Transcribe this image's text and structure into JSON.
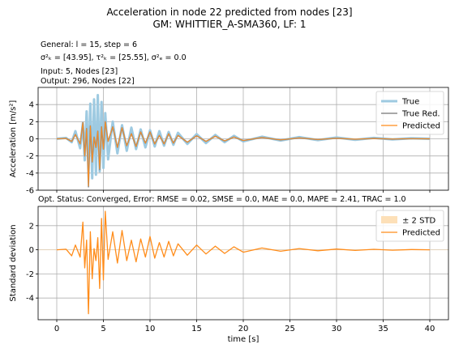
{
  "header": {
    "title_line1": "Acceleration in node 22 predicted from nodes [23]",
    "title_line2": "GM: WHITTIER_A-SMA360, LF: 1",
    "info_line1": "General: l = 15, step = 6",
    "info_line2": "σ²ₖ = [43.95], τ²ₖ = [25.55], σ²ₑ = 0.0",
    "info_line3": "Input: 5, Nodes [23]",
    "info_line4": "Output: 296, Nodes [22]",
    "opt_status": "Opt. Status: Converged, Error: RMSE = 0.02, SMSE = 0.0, MAE = 0.0, MAPE = 2.41, TRAC = 1.0"
  },
  "colors": {
    "true": "#9ecae1",
    "true_red": "#8c8c8c",
    "predicted": "#ff8c1a",
    "std_band": "#fde0b8",
    "grid": "#b0b0b0"
  },
  "chart_data": [
    {
      "type": "line",
      "ylabel": "Acceleration [m/s²]",
      "xlim": [
        -2,
        42
      ],
      "ylim": [
        -6,
        6
      ],
      "xticks": [
        0,
        5,
        10,
        15,
        20,
        25,
        30,
        35,
        40
      ],
      "yticks": [
        -6,
        -4,
        -2,
        0,
        2,
        4
      ],
      "grid": true,
      "legend_position": "top-right",
      "legend": [
        "True",
        "True Red.",
        "Predicted"
      ],
      "series": [
        {
          "name": "True",
          "x": [
            0,
            1,
            1.6,
            2,
            2.5,
            2.8,
            3,
            3.2,
            3.4,
            3.6,
            3.8,
            4,
            4.2,
            4.4,
            4.6,
            4.8,
            5,
            5.2,
            5.5,
            6,
            6.5,
            7,
            7.5,
            8,
            8.5,
            9,
            9.5,
            10,
            10.5,
            11,
            11.5,
            12,
            12.5,
            13,
            14,
            15,
            16,
            17,
            18,
            19,
            20,
            22,
            24,
            26,
            28,
            30,
            32,
            34,
            36,
            38,
            40
          ],
          "y": [
            0,
            0.1,
            -0.4,
            0.9,
            -1.1,
            1.8,
            -2.5,
            3.2,
            -3.0,
            4.1,
            -4.6,
            4.6,
            -4.2,
            5.1,
            -3.8,
            4.3,
            -3.4,
            3.0,
            -2.4,
            2.0,
            -1.7,
            1.6,
            -1.4,
            1.3,
            -1.2,
            1.1,
            -1.0,
            1.0,
            -0.9,
            0.9,
            -0.8,
            0.8,
            -0.7,
            0.7,
            -0.6,
            0.55,
            -0.5,
            0.45,
            -0.4,
            0.35,
            -0.3,
            0.25,
            -0.2,
            0.2,
            -0.15,
            0.15,
            -0.12,
            0.1,
            -0.08,
            0.06,
            0
          ]
        },
        {
          "name": "True Red.",
          "x": [
            0,
            1,
            1.6,
            2,
            2.5,
            2.8,
            3,
            3.2,
            3.4,
            3.6,
            3.8,
            4,
            4.2,
            4.4,
            4.6,
            4.8,
            5,
            5.2,
            5.5,
            6,
            6.5,
            7,
            7.5,
            8,
            8.5,
            9,
            9.5,
            10,
            10.5,
            11,
            11.5,
            12,
            12.5,
            13,
            14,
            15,
            16,
            17,
            18,
            19,
            20,
            22,
            24,
            26,
            28,
            30,
            32,
            34,
            36,
            38,
            40
          ],
          "y": [
            0,
            0.05,
            -0.3,
            0.5,
            -0.6,
            1.9,
            -2.0,
            1.2,
            -5.6,
            1.5,
            -2.7,
            0.2,
            -1.0,
            0.9,
            -3.6,
            1.4,
            -1.2,
            2.0,
            -0.3,
            1.4,
            -1.0,
            1.3,
            -0.8,
            0.6,
            -0.9,
            0.8,
            -0.5,
            0.8,
            -0.6,
            0.4,
            -0.6,
            0.6,
            -0.5,
            0.4,
            -0.4,
            0.35,
            -0.3,
            0.3,
            -0.25,
            0.2,
            -0.2,
            0.15,
            -0.12,
            0.1,
            -0.08,
            0.07,
            -0.05,
            0.04,
            -0.03,
            0.02,
            0
          ]
        },
        {
          "name": "Predicted",
          "x": [
            0,
            1,
            1.6,
            2,
            2.5,
            2.8,
            3,
            3.2,
            3.4,
            3.6,
            3.8,
            4,
            4.2,
            4.4,
            4.6,
            4.8,
            5,
            5.2,
            5.5,
            6,
            6.5,
            7,
            7.5,
            8,
            8.5,
            9,
            9.5,
            10,
            10.5,
            11,
            11.5,
            12,
            12.5,
            13,
            14,
            15,
            16,
            17,
            18,
            19,
            20,
            22,
            24,
            26,
            28,
            30,
            32,
            34,
            36,
            38,
            40
          ],
          "y": [
            0,
            0.05,
            -0.3,
            0.5,
            -0.6,
            1.9,
            -2.0,
            1.2,
            -5.5,
            1.5,
            -2.7,
            0.2,
            -1.0,
            0.9,
            -3.5,
            1.4,
            -1.2,
            2.0,
            -0.3,
            1.4,
            -1.0,
            1.3,
            -0.8,
            0.6,
            -0.9,
            0.8,
            -0.5,
            0.8,
            -0.6,
            0.4,
            -0.6,
            0.6,
            -0.5,
            0.4,
            -0.4,
            0.35,
            -0.3,
            0.3,
            -0.25,
            0.2,
            -0.2,
            0.15,
            -0.12,
            0.1,
            -0.08,
            0.07,
            -0.05,
            0.04,
            -0.03,
            0.02,
            0
          ]
        }
      ]
    },
    {
      "type": "line",
      "xlabel": "time [s]",
      "ylabel": "Standard deviation",
      "xlim": [
        -2,
        42
      ],
      "ylim": [
        -5.8,
        3.6
      ],
      "xticks": [
        0,
        5,
        10,
        15,
        20,
        25,
        30,
        35,
        40
      ],
      "xtick_labels": [
        "0",
        "5",
        "10",
        "15",
        "20",
        "25",
        "30",
        "35",
        "40"
      ],
      "yticks": [
        -4,
        -2,
        0,
        2
      ],
      "grid": true,
      "legend_position": "top-right",
      "legend": [
        "± 2 STD",
        "Predicted"
      ],
      "series": [
        {
          "name": "Predicted",
          "x": [
            0,
            1,
            1.6,
            2,
            2.5,
            2.8,
            3,
            3.2,
            3.4,
            3.6,
            3.8,
            4,
            4.2,
            4.4,
            4.6,
            4.8,
            5,
            5.2,
            5.5,
            6,
            6.5,
            7,
            7.5,
            8,
            8.5,
            9,
            9.5,
            10,
            10.5,
            11,
            11.5,
            12,
            12.5,
            13,
            14,
            15,
            16,
            17,
            18,
            19,
            20,
            22,
            24,
            26,
            28,
            30,
            32,
            34,
            36,
            38,
            40
          ],
          "y": [
            0,
            0.05,
            -0.5,
            0.4,
            -0.6,
            2.3,
            -1.5,
            0.8,
            -5.3,
            1.5,
            -2.4,
            0.1,
            -0.9,
            1.0,
            -3.2,
            2.6,
            -2.5,
            3.2,
            -0.8,
            1.5,
            -1.1,
            1.6,
            -0.9,
            0.8,
            -1.0,
            0.9,
            -0.6,
            1.1,
            -0.7,
            0.6,
            -0.6,
            0.7,
            -0.5,
            0.5,
            -0.45,
            0.4,
            -0.35,
            0.3,
            -0.3,
            0.25,
            -0.2,
            0.15,
            -0.12,
            0.1,
            -0.08,
            0.06,
            -0.05,
            0.04,
            -0.03,
            0.02,
            0
          ]
        }
      ],
      "std_band": {
        "name": "± 2 STD",
        "value": 0.0
      }
    }
  ]
}
